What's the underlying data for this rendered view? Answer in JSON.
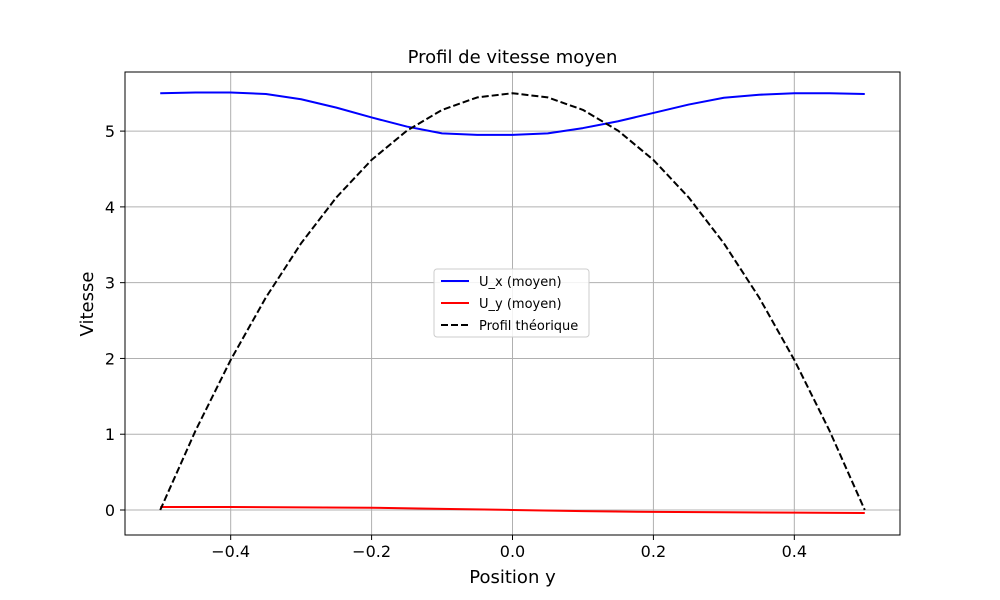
{
  "chart_data": {
    "type": "line",
    "title": "Profil de vitesse moyen",
    "xlabel": "Position y",
    "ylabel": "Vitesse",
    "xlim": [
      -0.55,
      0.55
    ],
    "ylim": [
      -0.33,
      5.78
    ],
    "xticks": [
      -0.4,
      -0.2,
      0.0,
      0.2,
      0.4
    ],
    "xtick_labels": [
      "−0.4",
      "−0.2",
      "0.0",
      "0.2",
      "0.4"
    ],
    "yticks": [
      0,
      1,
      2,
      3,
      4,
      5
    ],
    "ytick_labels": [
      "0",
      "1",
      "2",
      "3",
      "4",
      "5"
    ],
    "grid": true,
    "legend_position": "center",
    "series": [
      {
        "name": "U_x (moyen)",
        "color": "#0000ff",
        "style": "solid",
        "x": [
          -0.5,
          -0.45,
          -0.4,
          -0.35,
          -0.3,
          -0.25,
          -0.2,
          -0.15,
          -0.1,
          -0.05,
          0.0,
          0.05,
          0.1,
          0.15,
          0.2,
          0.25,
          0.3,
          0.35,
          0.4,
          0.45,
          0.5
        ],
        "y": [
          5.5,
          5.51,
          5.51,
          5.49,
          5.42,
          5.31,
          5.18,
          5.06,
          4.97,
          4.95,
          4.95,
          4.97,
          5.04,
          5.13,
          5.24,
          5.35,
          5.44,
          5.48,
          5.5,
          5.5,
          5.49
        ]
      },
      {
        "name": "U_y (moyen)",
        "color": "#ff0000",
        "style": "solid",
        "x": [
          -0.5,
          -0.4,
          -0.3,
          -0.2,
          -0.1,
          0.0,
          0.1,
          0.2,
          0.3,
          0.4,
          0.5
        ],
        "y": [
          0.04,
          0.04,
          0.035,
          0.03,
          0.015,
          0.0,
          -0.015,
          -0.025,
          -0.03,
          -0.035,
          -0.04
        ]
      },
      {
        "name": "Profil théorique",
        "color": "#000000",
        "style": "dashed",
        "x": [
          -0.5,
          -0.45,
          -0.4,
          -0.35,
          -0.3,
          -0.25,
          -0.2,
          -0.15,
          -0.1,
          -0.05,
          0.0,
          0.05,
          0.1,
          0.15,
          0.2,
          0.25,
          0.3,
          0.35,
          0.4,
          0.45,
          0.5
        ],
        "y": [
          0.0,
          1.045,
          1.98,
          2.805,
          3.52,
          4.125,
          4.62,
          5.005,
          5.28,
          5.445,
          5.5,
          5.445,
          5.28,
          5.005,
          4.62,
          4.125,
          3.52,
          2.805,
          1.98,
          1.045,
          0.0
        ]
      }
    ]
  }
}
